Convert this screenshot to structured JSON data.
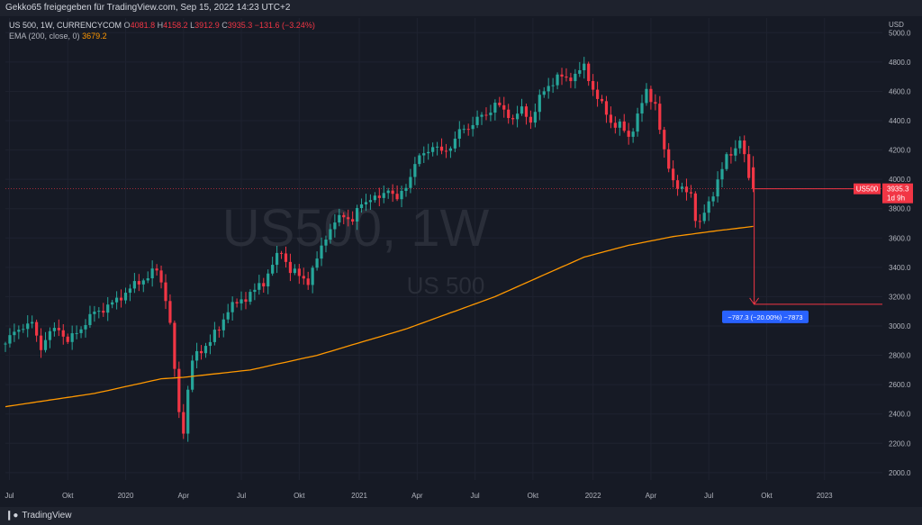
{
  "header": {
    "title": "Gekko65 freigegeben für TradingView.com, Sep 15, 2022 14:23 UTC+2"
  },
  "legend": {
    "symbol": "US 500, 1W, CURRENCYCOM",
    "open_label": "O",
    "open": "4081.8",
    "high_label": "H",
    "high": "4158.2",
    "low_label": "L",
    "low": "3912.9",
    "close_label": "C",
    "close": "3935.3",
    "change": "−131.6 (−3.24%)",
    "ema_label": "EMA (200, close, 0)",
    "ema_value": "3679.2"
  },
  "watermark": {
    "big": "US500, 1W",
    "small": "US 500"
  },
  "price_tag": {
    "symbol": "US500",
    "price": "3935.3",
    "countdown": "1d 9h"
  },
  "measure_label": "−787.3 (−20.00%) −7873",
  "footer": {
    "brand": "TradingView"
  },
  "colors": {
    "up": "#26a69a",
    "down": "#f23645",
    "ema": "#ff9800",
    "measure": "#2962ff",
    "background": "#161a25"
  },
  "chart_data": {
    "type": "candlestick",
    "currency_label": "USD",
    "y_ticks": [
      2000,
      2200,
      2400,
      2600,
      2800,
      3000,
      3200,
      3400,
      3600,
      3800,
      4000,
      4200,
      4400,
      4600,
      4800,
      5000
    ],
    "ylim": [
      1950,
      5100
    ],
    "x_ticks": [
      {
        "label": "Jul",
        "t": 0.9
      },
      {
        "label": "Okt",
        "t": 14.0
      },
      {
        "label": "2020",
        "t": 27.0
      },
      {
        "label": "Apr",
        "t": 40.0
      },
      {
        "label": "Jul",
        "t": 53.0
      },
      {
        "label": "Okt",
        "t": 66.0
      },
      {
        "label": "2021",
        "t": 79.5
      },
      {
        "label": "Apr",
        "t": 92.5
      },
      {
        "label": "Jul",
        "t": 105.5
      },
      {
        "label": "Okt",
        "t": 118.5
      },
      {
        "label": "2022",
        "t": 132.0
      },
      {
        "label": "Apr",
        "t": 145.0
      },
      {
        "label": "Jul",
        "t": 158.0
      },
      {
        "label": "Okt",
        "t": 171.0
      },
      {
        "label": "2023",
        "t": 184.0
      }
    ],
    "tmax": 197,
    "anchors": [
      [
        0,
        2880
      ],
      [
        3,
        2990
      ],
      [
        6,
        3010
      ],
      [
        8,
        2860
      ],
      [
        10,
        2950
      ],
      [
        12,
        2990
      ],
      [
        14,
        2890
      ],
      [
        17,
        2990
      ],
      [
        20,
        3090
      ],
      [
        24,
        3150
      ],
      [
        27,
        3230
      ],
      [
        30,
        3300
      ],
      [
        32,
        3340
      ],
      [
        34,
        3380
      ],
      [
        35,
        3300
      ],
      [
        36,
        3200
      ],
      [
        37,
        3000
      ],
      [
        38,
        2700
      ],
      [
        39,
        2400
      ],
      [
        40,
        2300
      ],
      [
        41,
        2560
      ],
      [
        42,
        2760
      ],
      [
        44,
        2840
      ],
      [
        46,
        2900
      ],
      [
        48,
        2980
      ],
      [
        50,
        3120
      ],
      [
        52,
        3150
      ],
      [
        54,
        3200
      ],
      [
        56,
        3240
      ],
      [
        58,
        3300
      ],
      [
        60,
        3420
      ],
      [
        62,
        3510
      ],
      [
        64,
        3380
      ],
      [
        66,
        3340
      ],
      [
        68,
        3310
      ],
      [
        70,
        3450
      ],
      [
        72,
        3620
      ],
      [
        74,
        3700
      ],
      [
        76,
        3760
      ],
      [
        78,
        3720
      ],
      [
        80,
        3830
      ],
      [
        82,
        3880
      ],
      [
        84,
        3860
      ],
      [
        86,
        3950
      ],
      [
        88,
        3850
      ],
      [
        90,
        3960
      ],
      [
        92,
        4100
      ],
      [
        94,
        4180
      ],
      [
        96,
        4230
      ],
      [
        98,
        4180
      ],
      [
        100,
        4230
      ],
      [
        102,
        4320
      ],
      [
        104,
        4360
      ],
      [
        106,
        4410
      ],
      [
        108,
        4440
      ],
      [
        110,
        4520
      ],
      [
        112,
        4460
      ],
      [
        114,
        4420
      ],
      [
        116,
        4470
      ],
      [
        118,
        4400
      ],
      [
        120,
        4550
      ],
      [
        122,
        4640
      ],
      [
        124,
        4700
      ],
      [
        126,
        4680
      ],
      [
        128,
        4720
      ],
      [
        130,
        4760
      ],
      [
        132,
        4620
      ],
      [
        134,
        4500
      ],
      [
        136,
        4390
      ],
      [
        138,
        4370
      ],
      [
        140,
        4280
      ],
      [
        142,
        4440
      ],
      [
        144,
        4590
      ],
      [
        146,
        4520
      ],
      [
        148,
        4170
      ],
      [
        150,
        4000
      ],
      [
        152,
        3920
      ],
      [
        154,
        3900
      ],
      [
        155,
        3750
      ],
      [
        156,
        3700
      ],
      [
        158,
        3830
      ],
      [
        160,
        4000
      ],
      [
        162,
        4140
      ],
      [
        164,
        4220
      ],
      [
        165,
        4280
      ],
      [
        166,
        4140
      ],
      [
        167,
        4010
      ],
      [
        168,
        3940
      ]
    ],
    "ema_anchors": [
      [
        0,
        2450
      ],
      [
        20,
        2540
      ],
      [
        35,
        2640
      ],
      [
        40,
        2650
      ],
      [
        55,
        2700
      ],
      [
        70,
        2800
      ],
      [
        90,
        2980
      ],
      [
        110,
        3200
      ],
      [
        130,
        3470
      ],
      [
        140,
        3550
      ],
      [
        150,
        3610
      ],
      [
        160,
        3650
      ],
      [
        168,
        3679.2
      ]
    ]
  }
}
